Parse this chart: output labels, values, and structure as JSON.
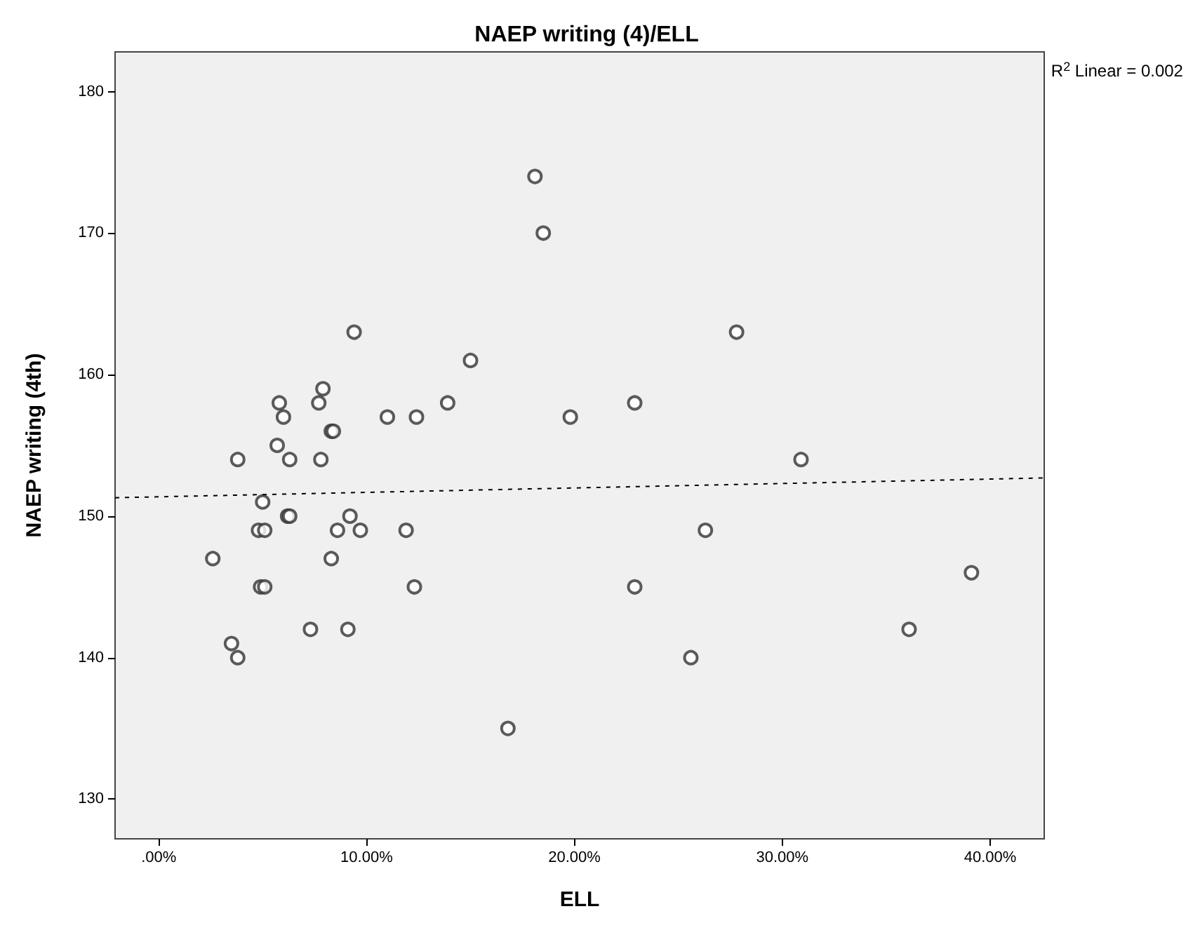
{
  "chart_data": {
    "type": "scatter",
    "title": "NAEP writing (4)/ELL",
    "xlabel": "ELL",
    "ylabel": "NAEP writing (4th)",
    "xlim": [
      -2.1,
      42.6
    ],
    "ylim": [
      127.2,
      182.8
    ],
    "xticks": [
      {
        "value": 0,
        "label": ".00%"
      },
      {
        "value": 10,
        "label": "10.00%"
      },
      {
        "value": 20,
        "label": "20.00%"
      },
      {
        "value": 30,
        "label": "30.00%"
      },
      {
        "value": 40,
        "label": "40.00%"
      }
    ],
    "yticks": [
      130,
      140,
      150,
      160,
      170,
      180
    ],
    "grid": false,
    "marker": "circle",
    "annotations": [
      "R$^{2}$ Linear = 0.002"
    ],
    "series": [
      {
        "color": "#333333",
        "x": [
          18.1,
          18.5,
          9.4,
          27.8,
          15.0,
          7.9,
          5.8,
          7.7,
          13.9,
          22.9,
          6.0,
          11.0,
          12.4,
          19.8,
          8.3,
          8.4,
          5.7,
          3.8,
          6.3,
          7.8,
          30.9,
          5.0,
          6.2,
          6.3,
          9.2,
          4.8,
          5.1,
          8.6,
          9.7,
          11.9,
          26.3,
          2.6,
          8.3,
          39.1,
          4.9,
          5.1,
          12.3,
          22.9,
          7.3,
          9.1,
          36.1,
          3.5,
          3.8,
          25.6,
          16.8
        ],
        "values": [
          174,
          170,
          163,
          163,
          161,
          159,
          158,
          158,
          158,
          158,
          157,
          157,
          157,
          157,
          156,
          156,
          155,
          154,
          154,
          154,
          154,
          151,
          150,
          150,
          150,
          149,
          149,
          149,
          149,
          149,
          149,
          147,
          147,
          146,
          145,
          145,
          145,
          145,
          142,
          142,
          142,
          141,
          140,
          140,
          135
        ]
      },
      {
        "type": "line",
        "color": "#000000",
        "line_style": "dotted",
        "marker": "none",
        "x": [
          -2.1,
          42.6
        ],
        "values": [
          151.3,
          152.7
        ]
      }
    ]
  }
}
